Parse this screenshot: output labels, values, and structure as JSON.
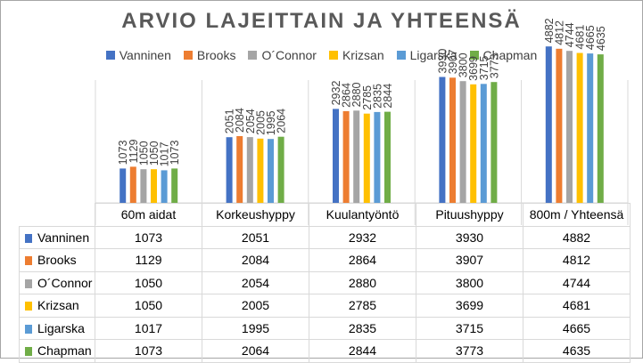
{
  "chart_data": {
    "type": "bar",
    "title": "ARVIO LAJEITTAIN JA YHTEENSÄ",
    "categories": [
      "60m aidat",
      "Korkeushyppy",
      "Kuulantyöntö",
      "Pituushyppy",
      "800m / Yhteensä"
    ],
    "series": [
      {
        "name": "Vanninen",
        "color": "#4472c4",
        "values": [
          1073,
          2051,
          2932,
          3930,
          4882
        ]
      },
      {
        "name": "Brooks",
        "color": "#ed7d31",
        "values": [
          1129,
          2084,
          2864,
          3907,
          4812
        ]
      },
      {
        "name": "O´Connor",
        "color": "#a5a5a5",
        "values": [
          1050,
          2054,
          2880,
          3800,
          4744
        ]
      },
      {
        "name": "Krizsan",
        "color": "#ffc000",
        "values": [
          1050,
          2005,
          2785,
          3699,
          4681
        ]
      },
      {
        "name": "Ligarska",
        "color": "#5b9bd5",
        "values": [
          1017,
          1995,
          2835,
          3715,
          4665
        ]
      },
      {
        "name": "Chapman",
        "color": "#70ad47",
        "values": [
          1073,
          2064,
          2844,
          3773,
          4635
        ]
      }
    ],
    "ylim": [
      0,
      5000
    ],
    "legend_position": "top",
    "data_table": true,
    "data_labels": "rotated-vertical"
  }
}
